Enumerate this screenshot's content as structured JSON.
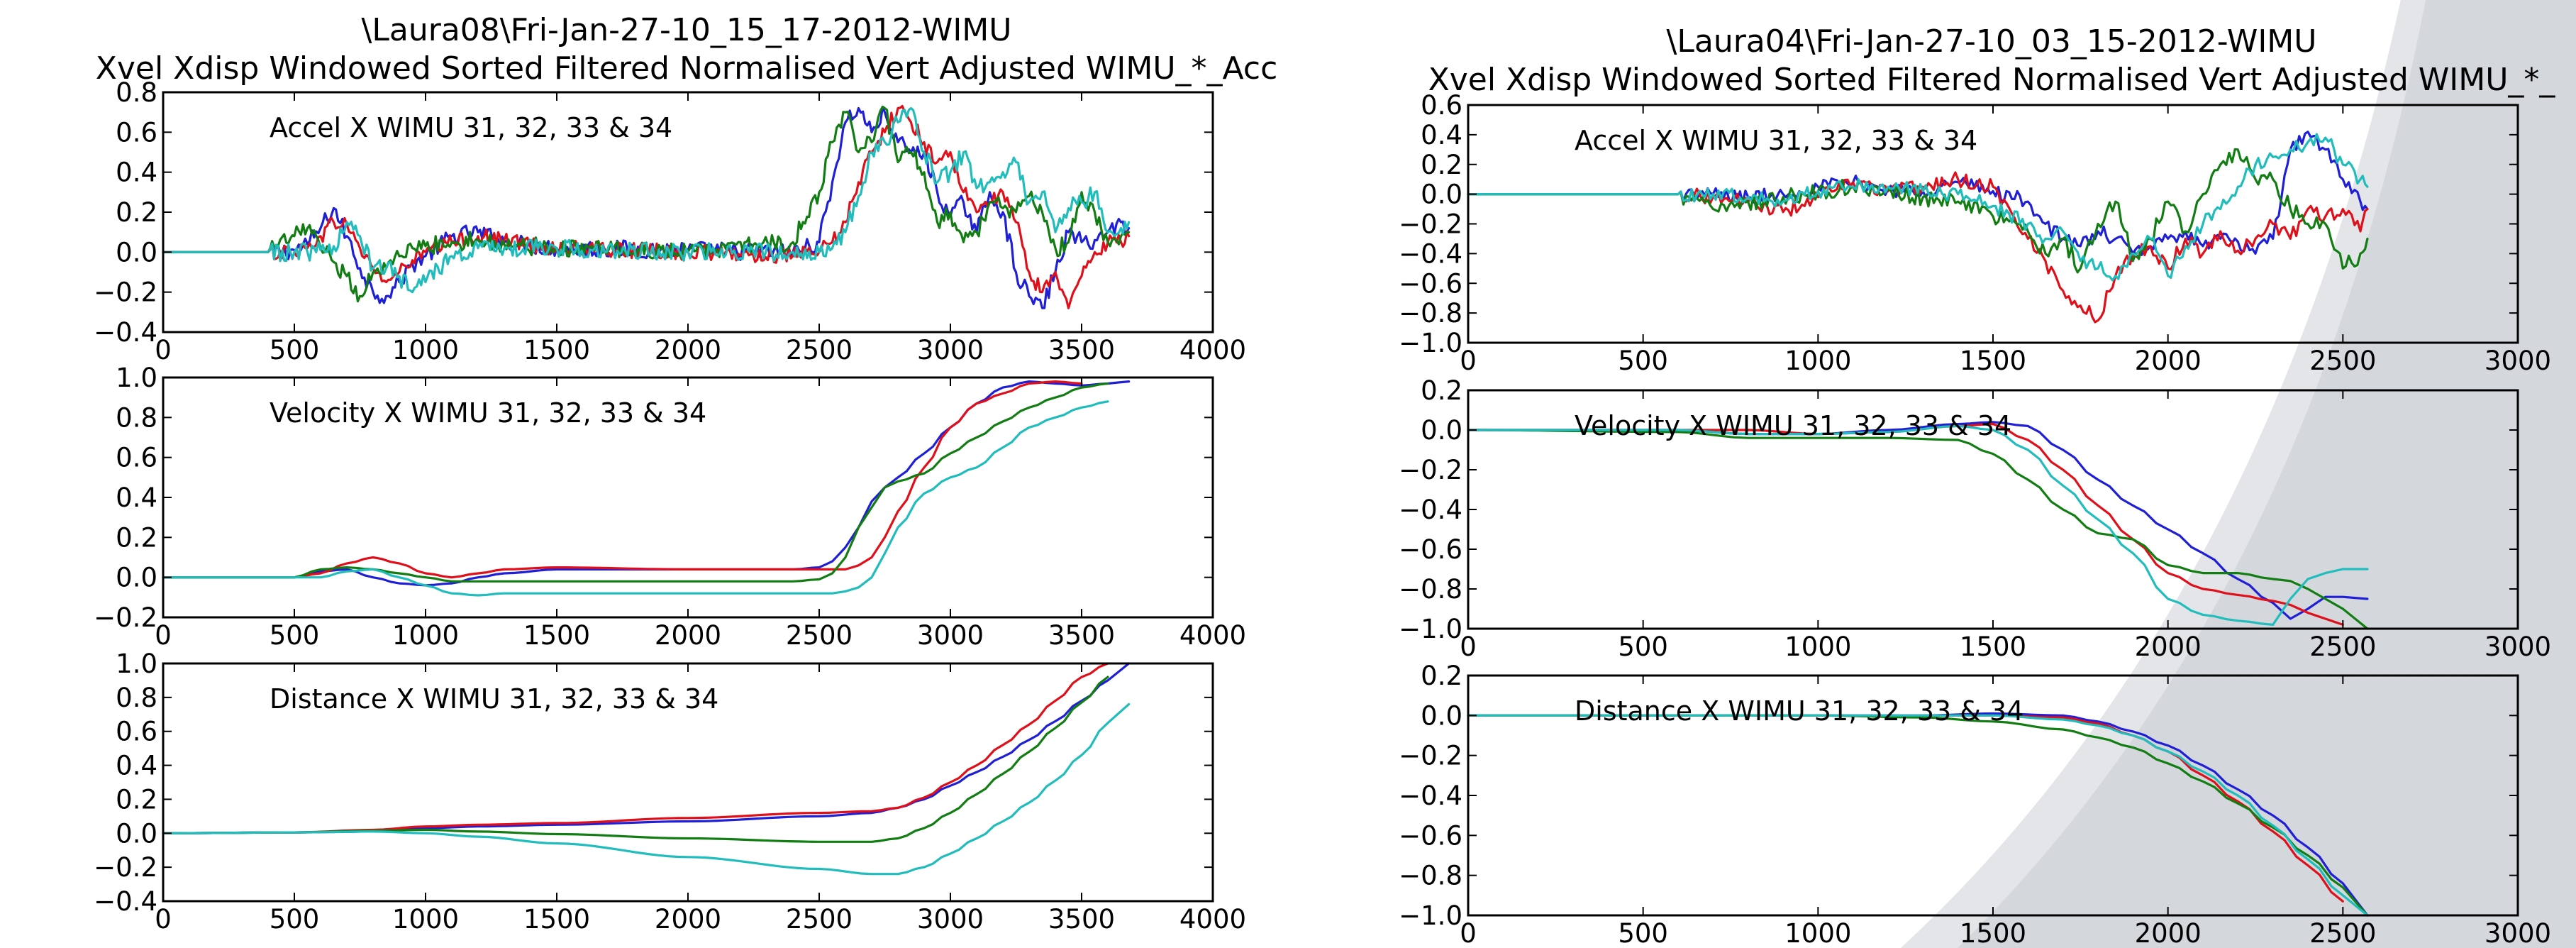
{
  "colors": {
    "series": [
      "#1f1fd6",
      "#e0101a",
      "#127d12",
      "#21bcbc"
    ],
    "background": "#ffffff",
    "overlay_band": "#d4d7dc"
  },
  "figures": [
    {
      "title_line1": "\\Laura08\\Fri-Jan-27-10_15_17-2012-WIMU",
      "title_line2": "Xvel Xdisp Windowed Sorted Filtered Normalised Vert Adjusted WIMU_*_Acc"
    },
    {
      "title_line1": "\\Laura04\\Fri-Jan-27-10_03_15-2012-WIMU",
      "title_line2": "Xvel Xdisp Windowed Sorted Filtered Normalised Vert Adjusted WIMU_*_"
    }
  ],
  "chart_data": [
    {
      "type": "line",
      "figure": 0,
      "annotation": "Accel X WIMU 31, 32, 33 & 34",
      "xlim": [
        0,
        4000
      ],
      "ylim": [
        -0.4,
        0.8
      ],
      "xticks": [
        "0",
        "500",
        "1000",
        "1500",
        "2000",
        "2500",
        "3000",
        "3500",
        "4000"
      ],
      "yticks": [
        "−0.4",
        "−0.2",
        "0.0",
        "0.2",
        "0.4",
        "0.6",
        "0.8"
      ],
      "x": [
        0,
        400,
        500,
        550,
        600,
        650,
        700,
        750,
        800,
        850,
        900,
        950,
        1000,
        1100,
        1200,
        1300,
        1500,
        2000,
        2400,
        2500,
        2550,
        2600,
        2650,
        2700,
        2750,
        2800,
        2850,
        2900,
        2950,
        3000,
        3050,
        3100,
        3150,
        3200,
        3250,
        3300,
        3350,
        3400,
        3450,
        3500,
        3550,
        3600,
        3650,
        3680
      ],
      "series": [
        {
          "values": [
            0,
            0,
            0.01,
            0.04,
            0.12,
            0.22,
            0.08,
            -0.08,
            -0.2,
            -0.22,
            -0.15,
            -0.06,
            -0.02,
            0.08,
            0.1,
            0.05,
            0.02,
            0.01,
            0,
            0.05,
            0.35,
            0.65,
            0.72,
            0.6,
            0.7,
            0.55,
            0.5,
            0.5,
            0.3,
            0.18,
            0.25,
            0.1,
            0.3,
            0.2,
            -0.1,
            -0.22,
            -0.28,
            -0.1,
            0.1,
            0.05,
            0.06,
            0.1,
            0.15,
            0.12
          ],
          "noise": 0.045
        },
        {
          "values": [
            0,
            0,
            0,
            0.02,
            0.08,
            0.15,
            0.14,
            0.02,
            -0.08,
            -0.15,
            -0.1,
            -0.04,
            0,
            0.05,
            0.08,
            0.06,
            0.02,
            0,
            -0.02,
            0,
            0.05,
            0.15,
            0.35,
            0.5,
            0.6,
            0.72,
            0.65,
            0.55,
            0.45,
            0.5,
            0.3,
            0.2,
            0.25,
            0.3,
            0.15,
            -0.1,
            -0.2,
            -0.1,
            -0.28,
            -0.12,
            0,
            0.05,
            0.05,
            0.08
          ],
          "noise": 0.04
        },
        {
          "values": [
            0,
            0,
            0.08,
            0.12,
            0.02,
            -0.05,
            -0.12,
            -0.22,
            -0.1,
            -0.08,
            -0.02,
            0.02,
            0.03,
            0.05,
            0.06,
            0.04,
            0.02,
            0,
            0.05,
            0.3,
            0.55,
            0.7,
            0.5,
            0.55,
            0.72,
            0.45,
            0.5,
            0.4,
            0.15,
            0.2,
            0.05,
            0.1,
            0.25,
            0.22,
            0.2,
            0.28,
            0.2,
            0.02,
            0.05,
            0.3,
            0.2,
            0.05,
            0.08,
            0.1
          ],
          "noise": 0.045
        },
        {
          "values": [
            0,
            0,
            0,
            0,
            0.01,
            0.03,
            0.15,
            0.08,
            -0.08,
            -0.08,
            -0.12,
            -0.2,
            -0.15,
            -0.02,
            0.02,
            0.02,
            0.02,
            0,
            0,
            0,
            0.02,
            0.1,
            0.28,
            0.5,
            0.55,
            0.65,
            0.72,
            0.5,
            0.35,
            0.4,
            0.5,
            0.32,
            0.35,
            0.4,
            0.45,
            0.25,
            0.3,
            0.1,
            0.22,
            0.25,
            0.3,
            0.1,
            0.12,
            0.15
          ],
          "noise": 0.045
        }
      ]
    },
    {
      "type": "line",
      "figure": 0,
      "annotation": "Velocity X WIMU 31, 32, 33 & 34",
      "xlim": [
        0,
        4000
      ],
      "ylim": [
        -0.2,
        1.0
      ],
      "xticks": [
        "0",
        "500",
        "1000",
        "1500",
        "2000",
        "2500",
        "3000",
        "3500",
        "4000"
      ],
      "yticks": [
        "−0.2",
        "0.0",
        "0.2",
        "0.4",
        "0.6",
        "0.8",
        "1.0"
      ],
      "x": [
        0,
        400,
        500,
        600,
        700,
        800,
        900,
        1000,
        1100,
        1200,
        1300,
        1500,
        2000,
        2400,
        2500,
        2550,
        2600,
        2650,
        2700,
        2750,
        2800,
        2900,
        3000,
        3100,
        3200,
        3300,
        3400,
        3500,
        3600,
        3680
      ],
      "series": [
        {
          "values": [
            0,
            0,
            0,
            0.03,
            0.04,
            0.0,
            -0.03,
            -0.04,
            -0.03,
            0.0,
            0.02,
            0.04,
            0.04,
            0.04,
            0.05,
            0.08,
            0.15,
            0.25,
            0.38,
            0.45,
            0.5,
            0.62,
            0.75,
            0.87,
            0.95,
            0.98,
            0.97,
            0.96,
            0.97,
            0.98
          ]
        },
        {
          "values": [
            0,
            0,
            0,
            0.02,
            0.07,
            0.1,
            0.07,
            0.02,
            0,
            0.02,
            0.04,
            0.05,
            0.04,
            0.04,
            0.04,
            0.04,
            0.04,
            0.06,
            0.1,
            0.2,
            0.33,
            0.55,
            0.75,
            0.87,
            0.92,
            0.97,
            0.98,
            0.97,
            null,
            null
          ]
        },
        {
          "values": [
            0,
            0,
            0,
            0.04,
            0.05,
            0.04,
            0.02,
            0,
            -0.02,
            -0.02,
            -0.02,
            -0.02,
            -0.02,
            -0.02,
            -0.01,
            0.02,
            0.1,
            0.25,
            0.35,
            0.45,
            0.48,
            0.52,
            0.62,
            0.7,
            0.78,
            0.85,
            0.9,
            0.95,
            0.97,
            null
          ]
        },
        {
          "values": [
            0,
            0,
            0,
            0,
            0.03,
            0.04,
            0.0,
            -0.04,
            -0.08,
            -0.09,
            -0.08,
            -0.08,
            -0.08,
            -0.08,
            -0.08,
            -0.08,
            -0.07,
            -0.05,
            0.0,
            0.12,
            0.25,
            0.42,
            0.5,
            0.55,
            0.65,
            0.75,
            0.8,
            0.85,
            0.88,
            null
          ]
        }
      ]
    },
    {
      "type": "line",
      "figure": 0,
      "annotation": "Distance X WIMU 31, 32, 33 & 34",
      "xlim": [
        0,
        4000
      ],
      "ylim": [
        -0.4,
        1.0
      ],
      "xticks": [
        "0",
        "500",
        "1000",
        "1500",
        "2000",
        "2500",
        "3000",
        "3500",
        "4000"
      ],
      "yticks": [
        "−0.4",
        "−0.2",
        "0.0",
        "0.2",
        "0.4",
        "0.6",
        "0.8",
        "1.0"
      ],
      "x": [
        0,
        500,
        800,
        1000,
        1200,
        1500,
        2000,
        2500,
        2700,
        2800,
        2900,
        3000,
        3100,
        3200,
        3300,
        3400,
        3500,
        3600,
        3680
      ],
      "series": [
        {
          "values": [
            0,
            0.005,
            0.01,
            0.03,
            0.04,
            0.05,
            0.07,
            0.1,
            0.12,
            0.15,
            0.2,
            0.28,
            0.36,
            0.45,
            0.55,
            0.66,
            0.78,
            0.9,
            1.0
          ]
        },
        {
          "values": [
            0,
            0.005,
            0.02,
            0.04,
            0.05,
            0.06,
            0.09,
            0.12,
            0.13,
            0.15,
            0.21,
            0.3,
            0.4,
            0.52,
            0.64,
            0.78,
            0.92,
            1.0,
            null
          ]
        },
        {
          "values": [
            0,
            0.005,
            0.015,
            0.02,
            0.01,
            -0.005,
            -0.03,
            -0.05,
            -0.05,
            -0.03,
            0.03,
            0.12,
            0.23,
            0.35,
            0.48,
            0.62,
            0.77,
            0.92,
            null
          ]
        },
        {
          "values": [
            0,
            0.005,
            0.01,
            0.0,
            -0.02,
            -0.06,
            -0.14,
            -0.21,
            -0.24,
            -0.24,
            -0.2,
            -0.12,
            -0.03,
            0.07,
            0.18,
            0.31,
            0.46,
            0.65,
            0.76
          ]
        }
      ]
    },
    {
      "type": "line",
      "figure": 1,
      "annotation": "Accel X WIMU 31, 32, 33 & 34",
      "xlim": [
        0,
        3000
      ],
      "ylim": [
        -1.0,
        0.6
      ],
      "xticks": [
        "0",
        "500",
        "1000",
        "1500",
        "2000",
        "2500",
        "3000"
      ],
      "yticks": [
        "−1.0",
        "−0.8",
        "−0.6",
        "−0.4",
        "−0.2",
        "0.0",
        "0.2",
        "0.4",
        "0.6"
      ],
      "x": [
        0,
        600,
        700,
        800,
        900,
        1000,
        1100,
        1200,
        1300,
        1400,
        1500,
        1600,
        1650,
        1700,
        1750,
        1800,
        1850,
        1900,
        1950,
        2000,
        2050,
        2100,
        2150,
        2200,
        2250,
        2300,
        2350,
        2400,
        2450,
        2500,
        2550,
        2570
      ],
      "series": [
        {
          "values": [
            0,
            0,
            0,
            -0.02,
            0,
            0.05,
            0.08,
            0.03,
            0.02,
            0.08,
            0.02,
            -0.05,
            -0.2,
            -0.3,
            -0.35,
            -0.25,
            -0.3,
            -0.4,
            -0.35,
            -0.3,
            -0.25,
            -0.35,
            -0.3,
            -0.32,
            -0.4,
            -0.3,
            0.3,
            0.42,
            0.3,
            0.1,
            -0.05,
            -0.1
          ],
          "noise": 0.05
        },
        {
          "values": [
            0,
            0,
            -0.02,
            -0.05,
            -0.12,
            -0.02,
            0.08,
            0.02,
            0.05,
            0.1,
            0.05,
            -0.3,
            -0.45,
            -0.65,
            -0.75,
            -0.85,
            -0.55,
            -0.4,
            -0.35,
            -0.5,
            -0.3,
            -0.4,
            -0.25,
            -0.38,
            -0.3,
            -0.2,
            -0.3,
            -0.1,
            -0.15,
            -0.1,
            -0.25,
            -0.1
          ],
          "noise": 0.05
        },
        {
          "values": [
            0,
            0,
            -0.1,
            -0.05,
            -0.02,
            0.02,
            0.05,
            0.03,
            -0.02,
            -0.05,
            -0.15,
            -0.25,
            -0.4,
            -0.3,
            -0.5,
            -0.2,
            -0.05,
            -0.45,
            -0.3,
            -0.05,
            -0.25,
            0.0,
            0.2,
            0.3,
            0.1,
            0.1,
            -0.1,
            -0.2,
            -0.2,
            -0.5,
            -0.4,
            -0.3
          ],
          "noise": 0.06
        },
        {
          "values": [
            0,
            0,
            0,
            -0.02,
            -0.05,
            0.02,
            0.05,
            0.05,
            0.02,
            0.0,
            -0.08,
            -0.2,
            -0.3,
            -0.25,
            -0.45,
            -0.5,
            -0.55,
            -0.4,
            -0.3,
            -0.55,
            -0.35,
            -0.2,
            -0.1,
            0.05,
            0.2,
            0.25,
            0.3,
            0.35,
            0.38,
            0.2,
            0.1,
            0.05
          ],
          "noise": 0.05
        }
      ]
    },
    {
      "type": "line",
      "figure": 1,
      "annotation": "Velocity X WIMU 31, 32, 33 & 34",
      "xlim": [
        0,
        3000
      ],
      "ylim": [
        -1.0,
        0.2
      ],
      "xticks": [
        "0",
        "500",
        "1000",
        "1500",
        "2000",
        "2500",
        "3000"
      ],
      "yticks": [
        "−1.0",
        "−0.8",
        "−0.6",
        "−0.4",
        "−0.2",
        "0.0",
        "0.2"
      ],
      "x": [
        0,
        600,
        800,
        1000,
        1200,
        1400,
        1500,
        1600,
        1700,
        1800,
        1900,
        2000,
        2100,
        2200,
        2300,
        2350,
        2400,
        2450,
        2500,
        2570
      ],
      "series": [
        {
          "values": [
            0,
            0,
            -0.02,
            -0.02,
            0,
            0.03,
            0.04,
            0.02,
            -0.1,
            -0.25,
            -0.38,
            -0.5,
            -0.62,
            -0.75,
            -0.87,
            -0.95,
            -0.9,
            -0.84,
            -0.84,
            -0.85
          ]
        },
        {
          "values": [
            0,
            0,
            0,
            -0.02,
            -0.01,
            0.02,
            0.03,
            -0.05,
            -0.2,
            -0.38,
            -0.55,
            -0.72,
            -0.8,
            -0.83,
            -0.86,
            -0.88,
            -0.92,
            -0.95,
            -0.98,
            null
          ]
        },
        {
          "values": [
            0,
            -0.01,
            -0.04,
            -0.04,
            -0.04,
            -0.05,
            -0.12,
            -0.25,
            -0.4,
            -0.52,
            -0.55,
            -0.68,
            -0.72,
            -0.72,
            -0.75,
            -0.76,
            -0.8,
            -0.85,
            -0.9,
            -1.0
          ]
        },
        {
          "values": [
            0,
            0,
            -0.02,
            -0.02,
            -0.01,
            0.02,
            0.0,
            -0.1,
            -0.28,
            -0.45,
            -0.62,
            -0.85,
            -0.93,
            -0.96,
            -0.98,
            -0.85,
            -0.75,
            -0.72,
            -0.7,
            -0.7
          ]
        }
      ]
    },
    {
      "type": "line",
      "figure": 1,
      "annotation": "Distance X WIMU 31, 32, 33 & 34",
      "xlim": [
        0,
        3000
      ],
      "ylim": [
        -1.0,
        0.2
      ],
      "xticks": [
        "0",
        "500",
        "1000",
        "1500",
        "2000",
        "2500",
        "3000"
      ],
      "yticks": [
        "−1.0",
        "−0.8",
        "−0.6",
        "−0.4",
        "−0.2",
        "0.0",
        "0.2"
      ],
      "x": [
        0,
        1000,
        1300,
        1500,
        1700,
        1800,
        1900,
        2000,
        2100,
        2200,
        2300,
        2400,
        2500,
        2570
      ],
      "series": [
        {
          "values": [
            0,
            0,
            0,
            0.01,
            0.0,
            -0.03,
            -0.08,
            -0.15,
            -0.25,
            -0.37,
            -0.5,
            -0.66,
            -0.84,
            -1.0
          ]
        },
        {
          "values": [
            0,
            0,
            0,
            0.0,
            -0.01,
            -0.04,
            -0.1,
            -0.18,
            -0.3,
            -0.43,
            -0.58,
            -0.75,
            -0.93,
            null
          ]
        },
        {
          "values": [
            0,
            0,
            -0.01,
            -0.03,
            -0.07,
            -0.11,
            -0.16,
            -0.24,
            -0.33,
            -0.44,
            -0.56,
            -0.7,
            -0.86,
            -1.0
          ]
        },
        {
          "values": [
            0,
            0,
            0,
            0.0,
            -0.02,
            -0.05,
            -0.1,
            -0.18,
            -0.28,
            -0.4,
            -0.55,
            -0.72,
            -0.9,
            -1.0
          ]
        }
      ]
    }
  ]
}
